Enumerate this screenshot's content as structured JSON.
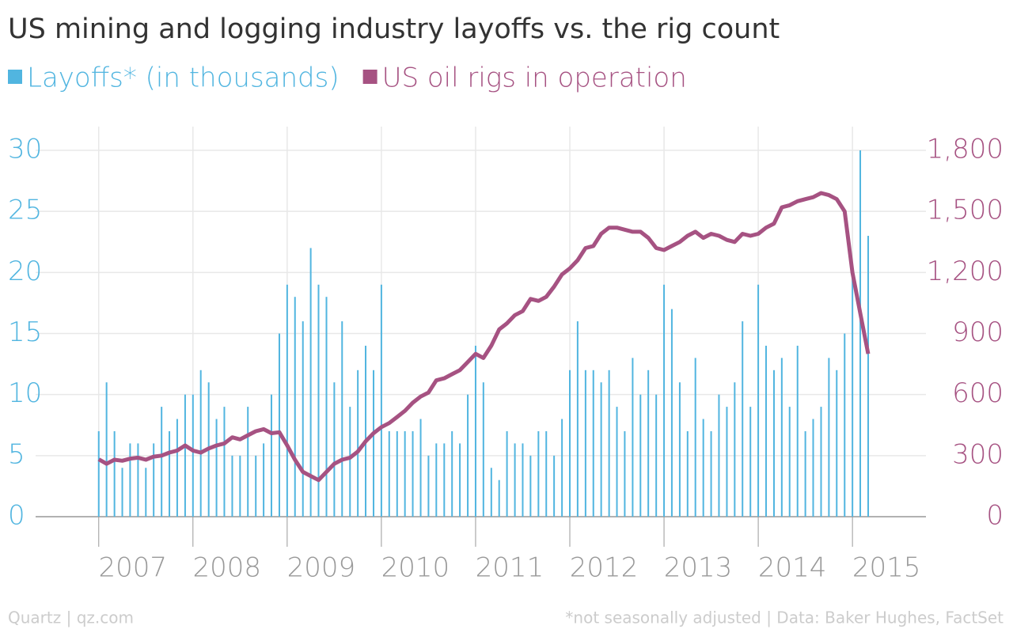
{
  "chart_data": {
    "type": "bar_line",
    "title": "US mining and logging industry layoffs vs. the rig count",
    "source": "Quartz | qz.com",
    "note": "*not seasonally adjusted | Data: Baker Hughes, FactSet",
    "x": [
      2007,
      2007.083,
      2007.167,
      2007.25,
      2007.333,
      2007.417,
      2007.5,
      2007.583,
      2007.667,
      2007.75,
      2007.833,
      2007.917,
      2008,
      2008.083,
      2008.167,
      2008.25,
      2008.333,
      2008.417,
      2008.5,
      2008.583,
      2008.667,
      2008.75,
      2008.833,
      2008.917,
      2009,
      2009.083,
      2009.167,
      2009.25,
      2009.333,
      2009.417,
      2009.5,
      2009.583,
      2009.667,
      2009.75,
      2009.833,
      2009.917,
      2010,
      2010.083,
      2010.167,
      2010.25,
      2010.333,
      2010.417,
      2010.5,
      2010.583,
      2010.667,
      2010.75,
      2010.833,
      2010.917,
      2011,
      2011.083,
      2011.167,
      2011.25,
      2011.333,
      2011.417,
      2011.5,
      2011.583,
      2011.667,
      2011.75,
      2011.833,
      2011.917,
      2012,
      2012.083,
      2012.167,
      2012.25,
      2012.333,
      2012.417,
      2012.5,
      2012.583,
      2012.667,
      2012.75,
      2012.833,
      2012.917,
      2013,
      2013.083,
      2013.167,
      2013.25,
      2013.333,
      2013.417,
      2013.5,
      2013.583,
      2013.667,
      2013.75,
      2013.833,
      2013.917,
      2014,
      2014.083,
      2014.167,
      2014.25,
      2014.333,
      2014.417,
      2014.5,
      2014.583,
      2014.667,
      2014.75,
      2014.833,
      2014.917,
      2015,
      2015.083,
      2015.167
    ],
    "series": [
      {
        "name": "Layoffs* (in thousands)",
        "kind": "bar",
        "color": "#51b5e0",
        "values": [
          7,
          11,
          7,
          4,
          6,
          6,
          4,
          6,
          9,
          7,
          8,
          10,
          10,
          12,
          11,
          8,
          9,
          5,
          5,
          9,
          5,
          6,
          10,
          15,
          19,
          18,
          16,
          22,
          19,
          18,
          11,
          16,
          9,
          12,
          14,
          12,
          19,
          7,
          7,
          7,
          7,
          8,
          5,
          6,
          6,
          7,
          6,
          10,
          14,
          11,
          4,
          3,
          7,
          6,
          6,
          5,
          7,
          7,
          5,
          8,
          12,
          16,
          12,
          12,
          11,
          12,
          9,
          7,
          13,
          10,
          12,
          10,
          19,
          17,
          11,
          7,
          13,
          8,
          7,
          10,
          9,
          11,
          16,
          9,
          19,
          14,
          12,
          13,
          9,
          14,
          7,
          8,
          9,
          13,
          12,
          15,
          20,
          30,
          23
        ]
      },
      {
        "name": "US oil rigs in operation",
        "kind": "line",
        "axis": "y2",
        "color": "#a65282",
        "values": [
          282,
          260,
          280,
          275,
          285,
          290,
          280,
          295,
          300,
          315,
          325,
          350,
          325,
          315,
          335,
          350,
          360,
          390,
          380,
          400,
          420,
          430,
          410,
          415,
          350,
          280,
          220,
          200,
          180,
          220,
          260,
          280,
          290,
          320,
          370,
          410,
          440,
          460,
          490,
          520,
          560,
          590,
          610,
          670,
          680,
          700,
          720,
          760,
          800,
          780,
          840,
          920,
          950,
          990,
          1010,
          1070,
          1060,
          1080,
          1130,
          1190,
          1220,
          1260,
          1320,
          1330,
          1390,
          1420,
          1420,
          1410,
          1400,
          1400,
          1370,
          1320,
          1310,
          1330,
          1350,
          1380,
          1400,
          1370,
          1390,
          1380,
          1360,
          1350,
          1390,
          1380,
          1390,
          1420,
          1440,
          1520,
          1530,
          1550,
          1560,
          1570,
          1590,
          1580,
          1560,
          1500,
          1200,
          1000,
          800
        ]
      }
    ],
    "xlim": [
      2006.33,
      2015.78
    ],
    "xticks": [
      2007,
      2008,
      2009,
      2010,
      2011,
      2012,
      2013,
      2014,
      2015
    ],
    "ylim": [
      0,
      30
    ],
    "yticks": [
      0,
      5,
      10,
      15,
      20,
      25,
      30
    ],
    "y2lim": [
      0,
      1800
    ],
    "y2ticks": [
      0,
      300,
      600,
      900,
      {
        "value": 1200,
        "label": "1,200"
      },
      {
        "value": 1500,
        "label": "1,500"
      },
      {
        "value": 1800,
        "label": "1,800"
      }
    ],
    "grid": true
  }
}
